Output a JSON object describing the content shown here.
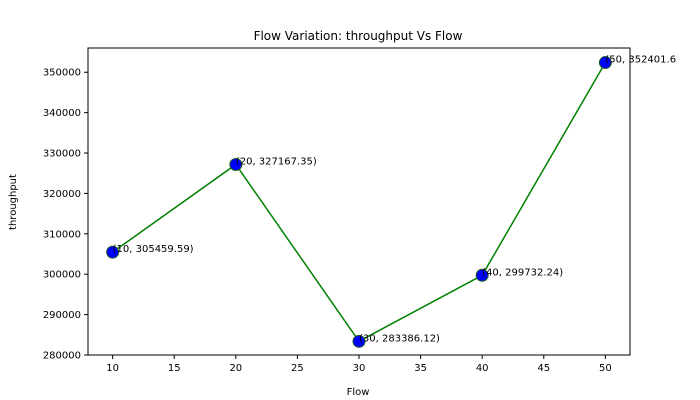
{
  "chart_data": {
    "type": "line",
    "title": "Flow Variation: throughput Vs Flow",
    "xlabel": "Flow",
    "ylabel": "throughput",
    "x": [
      10,
      20,
      30,
      40,
      50
    ],
    "series": [
      {
        "values": [
          305459.59,
          327167.35,
          283386.12,
          299732.24,
          352401.6
        ],
        "line_color": "#008000",
        "marker_color": "#0000ff",
        "marker_edge_color": "#1f5f1f",
        "marker": "circle"
      }
    ],
    "data_labels": [
      "(10, 305459.59)",
      "(20, 327167.35)",
      "(30, 283386.12)",
      "(40, 299732.24)",
      "(50, 352401.6"
    ],
    "xlim": [
      8,
      52
    ],
    "ylim": [
      280000,
      356000
    ],
    "x_ticks": [
      10,
      15,
      20,
      25,
      30,
      35,
      40,
      45,
      50
    ],
    "x_tick_labels": [
      "10",
      "15",
      "20",
      "25",
      "30",
      "35",
      "40",
      "45",
      "50"
    ],
    "y_ticks": [
      280000,
      290000,
      300000,
      310000,
      320000,
      330000,
      340000,
      350000
    ],
    "y_tick_labels": [
      "280000",
      "290000",
      "300000",
      "310000",
      "320000",
      "330000",
      "340000",
      "350000"
    ],
    "grid": false,
    "legend": "none"
  }
}
